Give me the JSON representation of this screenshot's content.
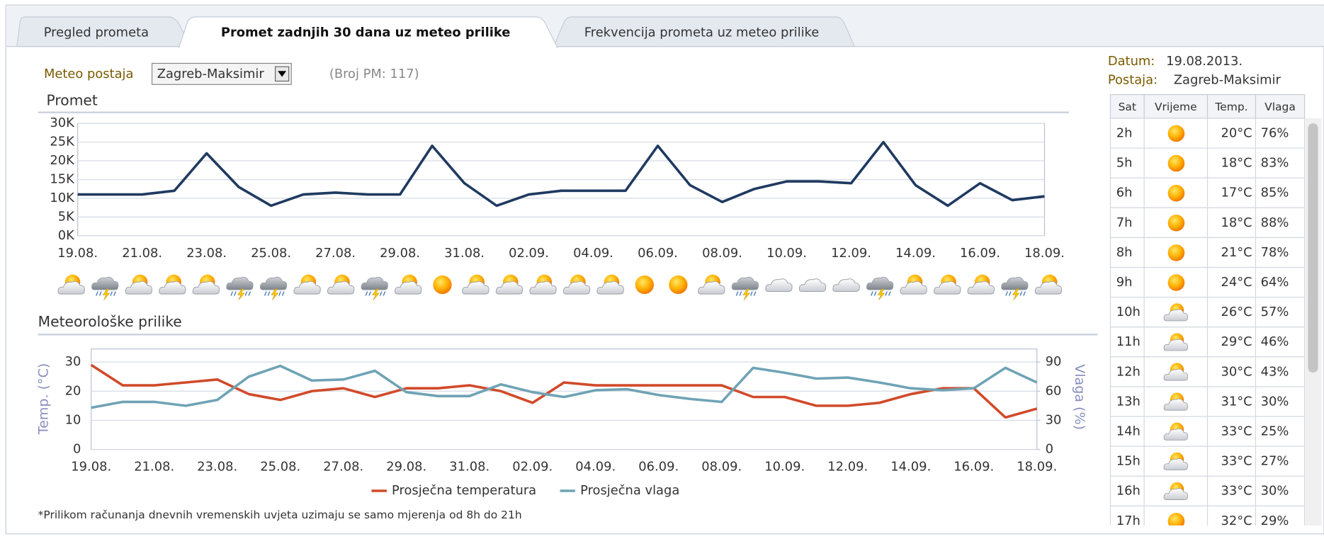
{
  "tabs": [
    "Pregled prometa",
    "Promet zadnjih 30 dana uz meteo prilike",
    "Frekvencija prometa uz meteo prilike"
  ],
  "controls": {
    "station_label": "Meteo postaja",
    "station": "Zagreb-Maksimir",
    "count": "(Broj PM: 117)"
  },
  "chart_data": [
    {
      "type": "line",
      "title": "Promet",
      "categories": [
        "19.08.",
        null,
        "21.08.",
        null,
        "23.08.",
        null,
        "25.08.",
        null,
        "27.08.",
        null,
        "29.08.",
        null,
        "31.08.",
        null,
        "02.09.",
        null,
        "04.09.",
        null,
        "06.09.",
        null,
        "08.09.",
        null,
        "10.09.",
        null,
        "12.09.",
        null,
        "14.09.",
        null,
        "16.09.",
        null,
        "18.09."
      ],
      "series": [
        {
          "color": "#1f3a60",
          "values": [
            11000,
            11000,
            11000,
            12000,
            22000,
            13000,
            8000,
            11000,
            11500,
            11000,
            11000,
            24000,
            14000,
            8000,
            11000,
            12000,
            12000,
            12000,
            24000,
            13500,
            9000,
            12500,
            14500,
            14500,
            14000,
            25000,
            13500,
            8000,
            14000,
            9500,
            10500
          ]
        }
      ],
      "ylim": [
        0,
        30000
      ],
      "yticks": [
        {
          "value": 0,
          "label": "0K"
        },
        {
          "value": 5000,
          "label": "5K"
        },
        {
          "value": 10000,
          "label": "10K"
        },
        {
          "value": 15000,
          "label": "15K"
        },
        {
          "value": 20000,
          "label": "20K"
        },
        {
          "value": 25000,
          "label": "25K"
        },
        {
          "value": 30000,
          "label": "30K"
        }
      ],
      "grid": true
    },
    {
      "type": "line",
      "title": "Meteorološke prilike",
      "ylabel": "Temp. (°C)",
      "y2label": "Vlaga (%)",
      "categories": [
        "19.08.",
        null,
        "21.08.",
        null,
        "23.08.",
        null,
        "25.08.",
        null,
        "27.08.",
        null,
        "29.08.",
        null,
        "31.08.",
        null,
        "02.09.",
        null,
        "04.09.",
        null,
        "06.09.",
        null,
        "08.09.",
        null,
        "10.09.",
        null,
        "12.09.",
        null,
        "14.09.",
        null,
        "16.09.",
        null,
        "18.09."
      ],
      "series": [
        {
          "name": "Prosječna temperatura",
          "color": "#d14a2a",
          "values": [
            29,
            22,
            22,
            23,
            24,
            19,
            17,
            20,
            21,
            18,
            21,
            21,
            22,
            20,
            16,
            23,
            22,
            22,
            22,
            22,
            22,
            18,
            18,
            15,
            15,
            16,
            19,
            21,
            21,
            11,
            14
          ]
        },
        {
          "name": "Prosječna vlaga",
          "color": "#6fa3b5",
          "axis": "y2",
          "values": [
            43,
            49,
            49,
            45,
            51,
            75,
            86,
            71,
            72,
            81,
            59,
            55,
            55,
            67,
            59,
            54,
            61,
            62,
            56,
            52,
            49,
            84,
            79,
            73,
            74,
            69,
            63,
            61,
            63,
            84,
            69
          ]
        }
      ],
      "ylim": [
        0,
        34.5
      ],
      "yticks": [
        0,
        10,
        20,
        30
      ],
      "y2lim": [
        0,
        103.5
      ],
      "y2ticks": [
        0,
        30,
        60,
        90
      ],
      "grid": true,
      "legend": "bottom"
    }
  ],
  "footnote": "*Prilikom računanja dnevnih vremenskih uvjeta uzimaju se samo mjerenja od 8h do 21h",
  "side": {
    "date_label": "Datum:",
    "date": "19.08.2013.",
    "station_label": "Postaja:",
    "station": "Zagreb-Maksimir",
    "table": {
      "header": [
        "Sat",
        "Vrijeme",
        "Temp.",
        "Vlaga"
      ],
      "rows": [
        [
          "2h",
          "20°C",
          "76%"
        ],
        [
          "5h",
          "18°C",
          "83%"
        ],
        [
          "6h",
          "17°C",
          "85%"
        ],
        [
          "7h",
          "18°C",
          "88%"
        ],
        [
          "8h",
          "21°C",
          "78%"
        ],
        [
          "9h",
          "24°C",
          "64%"
        ],
        [
          "10h",
          "26°C",
          "57%"
        ],
        [
          "11h",
          "29°C",
          "46%"
        ],
        [
          "12h",
          "30°C",
          "43%"
        ],
        [
          "13h",
          "31°C",
          "30%"
        ],
        [
          "14h",
          "33°C",
          "25%"
        ],
        [
          "15h",
          "33°C",
          "27%"
        ],
        [
          "16h",
          "33°C",
          "30%"
        ],
        [
          "17h",
          "32°C",
          "29%"
        ]
      ]
    }
  }
}
